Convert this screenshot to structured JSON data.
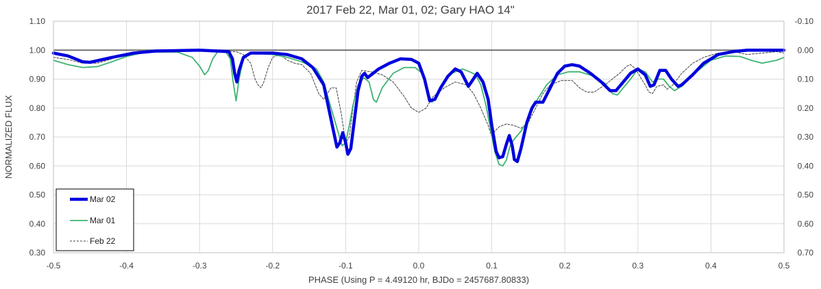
{
  "chart_data": {
    "type": "line",
    "title": "2017 Feb 22, Mar 01, 02; Gary HAO 14\"",
    "xlabel": "PHASE (Using P = 4.49120 hr, BJDo = 2457687.80833)",
    "ylabel": "NORMALIZED FLUX",
    "xlim": [
      -0.5,
      0.5
    ],
    "ylim": [
      0.3,
      1.1
    ],
    "y2lim": [
      0.7,
      -0.1
    ],
    "grid": true,
    "legend_position": "bottom-left",
    "x_ticks": [
      "-0.5",
      "-0.4",
      "-0.3",
      "-0.2",
      "-0.1",
      "0.0",
      "0.1",
      "0.2",
      "0.3",
      "0.4",
      "0.5"
    ],
    "y_ticks": [
      "1.10",
      "1.00",
      "0.90",
      "0.80",
      "0.70",
      "0.60",
      "0.50",
      "0.40",
      "0.30"
    ],
    "y2_ticks": [
      "-0.10",
      "0.00",
      "0.10",
      "0.20",
      "0.30",
      "0.40",
      "0.50",
      "0.60",
      "0.70"
    ],
    "reference_line": 1.0,
    "series": [
      {
        "name": "Mar 02",
        "color": "#0000dd",
        "style": "thick-solid",
        "points": [
          [
            -0.5,
            0.99
          ],
          [
            -0.48,
            0.98
          ],
          [
            -0.46,
            0.96
          ],
          [
            -0.45,
            0.958
          ],
          [
            -0.42,
            0.975
          ],
          [
            -0.39,
            0.99
          ],
          [
            -0.36,
            0.997
          ],
          [
            -0.3,
            1.0
          ],
          [
            -0.26,
            0.995
          ],
          [
            -0.255,
            0.97
          ],
          [
            -0.252,
            0.92
          ],
          [
            -0.249,
            0.89
          ],
          [
            -0.246,
            0.93
          ],
          [
            -0.24,
            0.975
          ],
          [
            -0.23,
            0.99
          ],
          [
            -0.2,
            0.99
          ],
          [
            -0.18,
            0.985
          ],
          [
            -0.16,
            0.97
          ],
          [
            -0.145,
            0.94
          ],
          [
            -0.13,
            0.88
          ],
          [
            -0.12,
            0.76
          ],
          [
            -0.112,
            0.665
          ],
          [
            -0.108,
            0.68
          ],
          [
            -0.104,
            0.715
          ],
          [
            -0.1,
            0.68
          ],
          [
            -0.097,
            0.64
          ],
          [
            -0.093,
            0.66
          ],
          [
            -0.088,
            0.76
          ],
          [
            -0.083,
            0.86
          ],
          [
            -0.078,
            0.91
          ],
          [
            -0.074,
            0.92
          ],
          [
            -0.07,
            0.905
          ],
          [
            -0.065,
            0.915
          ],
          [
            -0.055,
            0.935
          ],
          [
            -0.04,
            0.955
          ],
          [
            -0.025,
            0.97
          ],
          [
            -0.01,
            0.968
          ],
          [
            0.0,
            0.955
          ],
          [
            0.008,
            0.9
          ],
          [
            0.015,
            0.825
          ],
          [
            0.022,
            0.83
          ],
          [
            0.03,
            0.87
          ],
          [
            0.04,
            0.91
          ],
          [
            0.05,
            0.935
          ],
          [
            0.058,
            0.925
          ],
          [
            0.065,
            0.89
          ],
          [
            0.068,
            0.875
          ],
          [
            0.072,
            0.89
          ],
          [
            0.08,
            0.92
          ],
          [
            0.088,
            0.89
          ],
          [
            0.095,
            0.83
          ],
          [
            0.1,
            0.74
          ],
          [
            0.106,
            0.65
          ],
          [
            0.11,
            0.628
          ],
          [
            0.115,
            0.632
          ],
          [
            0.12,
            0.675
          ],
          [
            0.124,
            0.705
          ],
          [
            0.128,
            0.67
          ],
          [
            0.131,
            0.622
          ],
          [
            0.135,
            0.615
          ],
          [
            0.14,
            0.66
          ],
          [
            0.148,
            0.75
          ],
          [
            0.155,
            0.8
          ],
          [
            0.16,
            0.82
          ],
          [
            0.17,
            0.82
          ],
          [
            0.18,
            0.87
          ],
          [
            0.19,
            0.92
          ],
          [
            0.2,
            0.945
          ],
          [
            0.21,
            0.95
          ],
          [
            0.22,
            0.945
          ],
          [
            0.235,
            0.92
          ],
          [
            0.25,
            0.89
          ],
          [
            0.262,
            0.86
          ],
          [
            0.27,
            0.86
          ],
          [
            0.28,
            0.89
          ],
          [
            0.29,
            0.92
          ],
          [
            0.3,
            0.935
          ],
          [
            0.31,
            0.915
          ],
          [
            0.317,
            0.875
          ],
          [
            0.322,
            0.88
          ],
          [
            0.33,
            0.93
          ],
          [
            0.338,
            0.93
          ],
          [
            0.346,
            0.9
          ],
          [
            0.355,
            0.875
          ],
          [
            0.36,
            0.88
          ],
          [
            0.375,
            0.915
          ],
          [
            0.39,
            0.955
          ],
          [
            0.41,
            0.985
          ],
          [
            0.43,
            0.995
          ],
          [
            0.45,
            1.0
          ],
          [
            0.5,
            1.0
          ]
        ]
      },
      {
        "name": "Mar 01",
        "color": "#3cb371",
        "style": "solid",
        "points": [
          [
            -0.5,
            0.965
          ],
          [
            -0.48,
            0.95
          ],
          [
            -0.46,
            0.94
          ],
          [
            -0.44,
            0.943
          ],
          [
            -0.42,
            0.96
          ],
          [
            -0.4,
            0.978
          ],
          [
            -0.38,
            0.99
          ],
          [
            -0.36,
            0.994
          ],
          [
            -0.33,
            0.993
          ],
          [
            -0.31,
            0.975
          ],
          [
            -0.3,
            0.945
          ],
          [
            -0.293,
            0.915
          ],
          [
            -0.288,
            0.93
          ],
          [
            -0.282,
            0.97
          ],
          [
            -0.275,
            0.995
          ],
          [
            -0.265,
            0.998
          ],
          [
            -0.258,
            0.97
          ],
          [
            -0.254,
            0.89
          ],
          [
            -0.25,
            0.825
          ],
          [
            -0.246,
            0.9
          ],
          [
            -0.24,
            0.97
          ],
          [
            -0.23,
            0.99
          ],
          [
            -0.2,
            0.985
          ],
          [
            -0.18,
            0.975
          ],
          [
            -0.16,
            0.96
          ],
          [
            -0.14,
            0.935
          ],
          [
            -0.13,
            0.89
          ],
          [
            -0.12,
            0.8
          ],
          [
            -0.113,
            0.74
          ],
          [
            -0.105,
            0.67
          ],
          [
            -0.1,
            0.68
          ],
          [
            -0.095,
            0.74
          ],
          [
            -0.09,
            0.81
          ],
          [
            -0.083,
            0.88
          ],
          [
            -0.075,
            0.905
          ],
          [
            -0.068,
            0.89
          ],
          [
            -0.062,
            0.83
          ],
          [
            -0.058,
            0.82
          ],
          [
            -0.05,
            0.87
          ],
          [
            -0.035,
            0.92
          ],
          [
            -0.02,
            0.94
          ],
          [
            -0.005,
            0.94
          ],
          [
            0.005,
            0.92
          ],
          [
            0.012,
            0.86
          ],
          [
            0.018,
            0.82
          ],
          [
            0.025,
            0.84
          ],
          [
            0.035,
            0.89
          ],
          [
            0.045,
            0.92
          ],
          [
            0.06,
            0.935
          ],
          [
            0.07,
            0.925
          ],
          [
            0.078,
            0.915
          ],
          [
            0.085,
            0.88
          ],
          [
            0.092,
            0.81
          ],
          [
            0.098,
            0.73
          ],
          [
            0.104,
            0.65
          ],
          [
            0.11,
            0.605
          ],
          [
            0.115,
            0.6
          ],
          [
            0.12,
            0.62
          ],
          [
            0.125,
            0.67
          ],
          [
            0.13,
            0.69
          ],
          [
            0.14,
            0.72
          ],
          [
            0.15,
            0.76
          ],
          [
            0.16,
            0.82
          ],
          [
            0.175,
            0.88
          ],
          [
            0.19,
            0.915
          ],
          [
            0.205,
            0.925
          ],
          [
            0.22,
            0.925
          ],
          [
            0.24,
            0.91
          ],
          [
            0.255,
            0.885
          ],
          [
            0.265,
            0.85
          ],
          [
            0.272,
            0.845
          ],
          [
            0.28,
            0.87
          ],
          [
            0.29,
            0.9
          ],
          [
            0.3,
            0.935
          ],
          [
            0.31,
            0.925
          ],
          [
            0.32,
            0.89
          ],
          [
            0.328,
            0.9
          ],
          [
            0.335,
            0.9
          ],
          [
            0.343,
            0.875
          ],
          [
            0.35,
            0.86
          ],
          [
            0.36,
            0.875
          ],
          [
            0.38,
            0.925
          ],
          [
            0.4,
            0.965
          ],
          [
            0.42,
            0.98
          ],
          [
            0.44,
            0.978
          ],
          [
            0.455,
            0.965
          ],
          [
            0.47,
            0.955
          ],
          [
            0.49,
            0.965
          ],
          [
            0.5,
            0.975
          ]
        ]
      },
      {
        "name": "Feb 22",
        "color": "#404040",
        "style": "dashed",
        "points": [
          [
            -0.5,
            0.975
          ],
          [
            -0.48,
            0.968
          ],
          [
            -0.46,
            0.955
          ],
          [
            -0.44,
            0.955
          ],
          [
            -0.42,
            0.97
          ],
          [
            -0.4,
            0.985
          ],
          [
            -0.38,
            0.993
          ],
          [
            -0.36,
            0.997
          ],
          [
            -0.33,
            0.999
          ],
          [
            -0.3,
            0.998
          ],
          [
            -0.27,
            0.997
          ],
          [
            -0.25,
            0.995
          ],
          [
            -0.24,
            0.985
          ],
          [
            -0.23,
            0.955
          ],
          [
            -0.224,
            0.9
          ],
          [
            -0.22,
            0.88
          ],
          [
            -0.216,
            0.87
          ],
          [
            -0.212,
            0.89
          ],
          [
            -0.206,
            0.94
          ],
          [
            -0.2,
            0.975
          ],
          [
            -0.19,
            0.985
          ],
          [
            -0.18,
            0.965
          ],
          [
            -0.17,
            0.955
          ],
          [
            -0.16,
            0.95
          ],
          [
            -0.148,
            0.92
          ],
          [
            -0.137,
            0.85
          ],
          [
            -0.13,
            0.83
          ],
          [
            -0.12,
            0.87
          ],
          [
            -0.113,
            0.87
          ],
          [
            -0.106,
            0.78
          ],
          [
            -0.1,
            0.68
          ],
          [
            -0.095,
            0.7
          ],
          [
            -0.09,
            0.8
          ],
          [
            -0.085,
            0.89
          ],
          [
            -0.078,
            0.93
          ],
          [
            -0.065,
            0.925
          ],
          [
            -0.05,
            0.915
          ],
          [
            -0.035,
            0.89
          ],
          [
            -0.02,
            0.84
          ],
          [
            -0.01,
            0.8
          ],
          [
            0.0,
            0.785
          ],
          [
            0.01,
            0.8
          ],
          [
            0.02,
            0.84
          ],
          [
            0.035,
            0.87
          ],
          [
            0.05,
            0.89
          ],
          [
            0.065,
            0.88
          ],
          [
            0.075,
            0.85
          ],
          [
            0.085,
            0.8
          ],
          [
            0.095,
            0.74
          ],
          [
            0.1,
            0.7
          ],
          [
            0.104,
            0.72
          ],
          [
            0.11,
            0.735
          ],
          [
            0.12,
            0.745
          ],
          [
            0.13,
            0.74
          ],
          [
            0.14,
            0.73
          ],
          [
            0.15,
            0.75
          ],
          [
            0.16,
            0.8
          ],
          [
            0.17,
            0.85
          ],
          [
            0.18,
            0.88
          ],
          [
            0.195,
            0.895
          ],
          [
            0.21,
            0.895
          ],
          [
            0.22,
            0.87
          ],
          [
            0.23,
            0.855
          ],
          [
            0.24,
            0.855
          ],
          [
            0.255,
            0.88
          ],
          [
            0.265,
            0.9
          ],
          [
            0.275,
            0.92
          ],
          [
            0.285,
            0.945
          ],
          [
            0.29,
            0.95
          ],
          [
            0.297,
            0.935
          ],
          [
            0.305,
            0.9
          ],
          [
            0.31,
            0.88
          ],
          [
            0.315,
            0.855
          ],
          [
            0.32,
            0.85
          ],
          [
            0.326,
            0.875
          ],
          [
            0.335,
            0.88
          ],
          [
            0.34,
            0.865
          ],
          [
            0.348,
            0.88
          ],
          [
            0.36,
            0.92
          ],
          [
            0.375,
            0.955
          ],
          [
            0.39,
            0.975
          ],
          [
            0.41,
            0.99
          ],
          [
            0.43,
            0.995
          ],
          [
            0.45,
            0.985
          ],
          [
            0.47,
            0.99
          ],
          [
            0.49,
            0.995
          ],
          [
            0.5,
            0.99
          ]
        ]
      }
    ]
  }
}
